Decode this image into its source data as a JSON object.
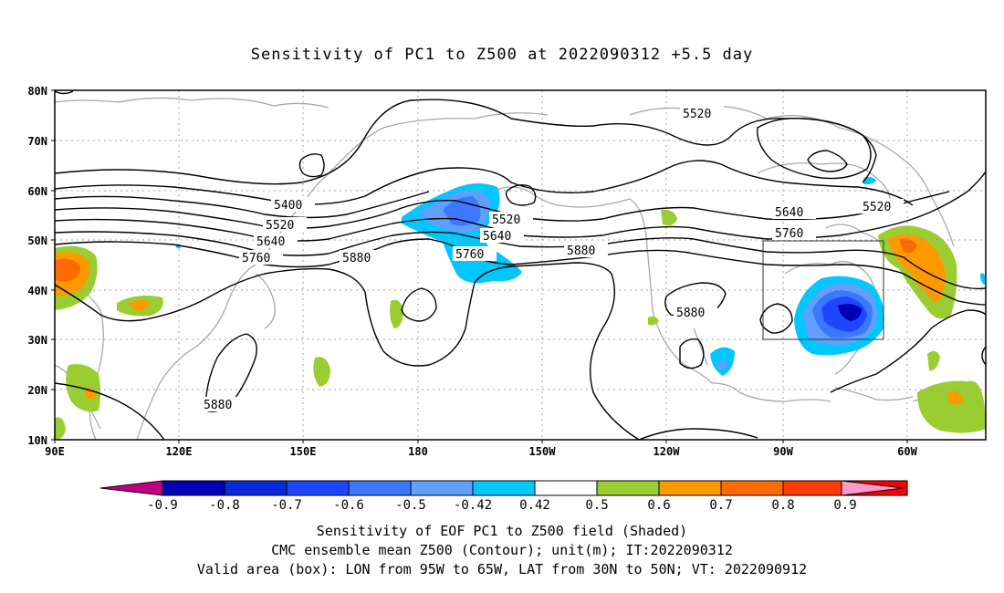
{
  "title": "Sensitivity of PC1 to Z500 at 2022090312 +5.5 day",
  "axes": {
    "lat_labels": [
      "80N",
      "70N",
      "60N",
      "50N",
      "40N",
      "30N",
      "20N",
      "10N"
    ],
    "lon_labels": [
      "90E",
      "120E",
      "150E",
      "180",
      "150W",
      "120W",
      "90W",
      "60W"
    ]
  },
  "contour_labels": {
    "c5400": "5400",
    "c5520a": "5520",
    "c5640a": "5640",
    "c5760a": "5760",
    "c5880a": "5880",
    "c5520b": "5520",
    "c5640b": "5640",
    "c5760b": "5760",
    "c5880b": "5880",
    "c5520c": "5520",
    "c5880c": "5880",
    "c5640c": "5640",
    "c5760c": "5760",
    "c5520d": "5520",
    "c5880d": "5880"
  },
  "colorbar": {
    "labels": [
      "-0.9",
      "-0.8",
      "-0.7",
      "-0.6",
      "-0.5",
      "-0.42",
      "0.42",
      "0.5",
      "0.6",
      "0.7",
      "0.8",
      "0.9"
    ],
    "colors": [
      "#c0007f",
      "#0000b4",
      "#0a28dc",
      "#1e46ff",
      "#3c78ff",
      "#5fa0ff",
      "#00c8ff",
      "#ffffff",
      "#9acd32",
      "#ff9900",
      "#ff6a00",
      "#ff3c00",
      "#ff0000",
      "#ff99cc"
    ]
  },
  "captions": {
    "line1": "Sensitivity of EOF PC1 to Z500 field (Shaded)",
    "line2": "CMC ensemble mean Z500 (Contour); unit(m); IT:2022090312",
    "line3": "Valid area (box): LON from 95W to 65W, LAT from 30N to 50N; VT: 2022090912"
  }
}
